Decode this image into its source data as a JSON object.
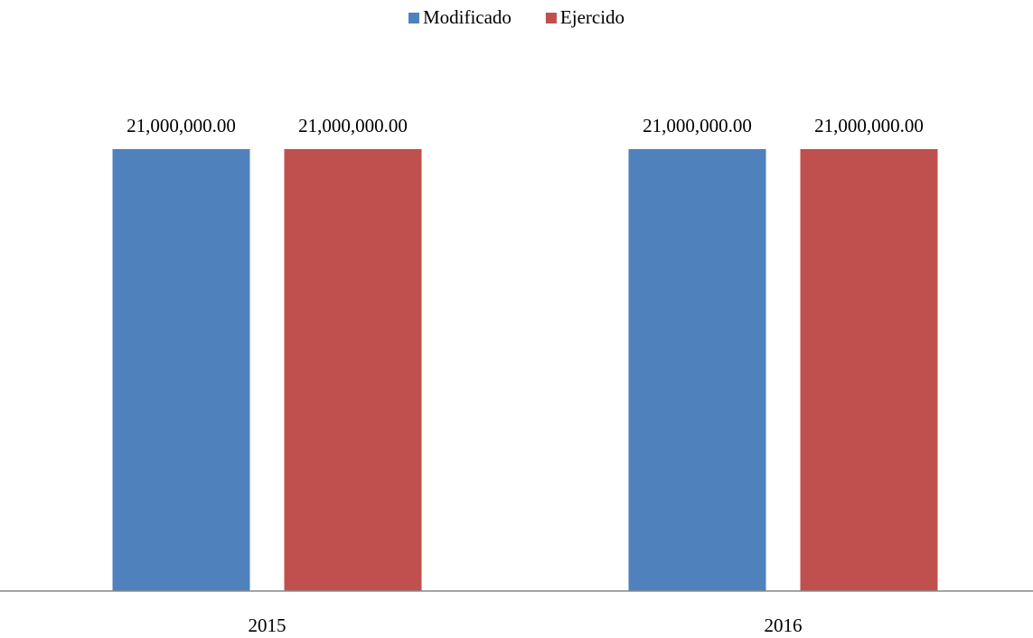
{
  "chart_data": {
    "type": "bar",
    "categories": [
      "2015",
      "2016"
    ],
    "series": [
      {
        "name": "Modificado",
        "color": "#4f81bd",
        "values": [
          21000000,
          21000000
        ],
        "value_labels": [
          "21,000,000.00",
          "21,000,000.00"
        ]
      },
      {
        "name": "Ejercido",
        "color": "#c0504d",
        "values": [
          21000000,
          21000000
        ],
        "value_labels": [
          "21,000,000.00",
          "21,000,000.00"
        ]
      }
    ],
    "legend": "top"
  }
}
